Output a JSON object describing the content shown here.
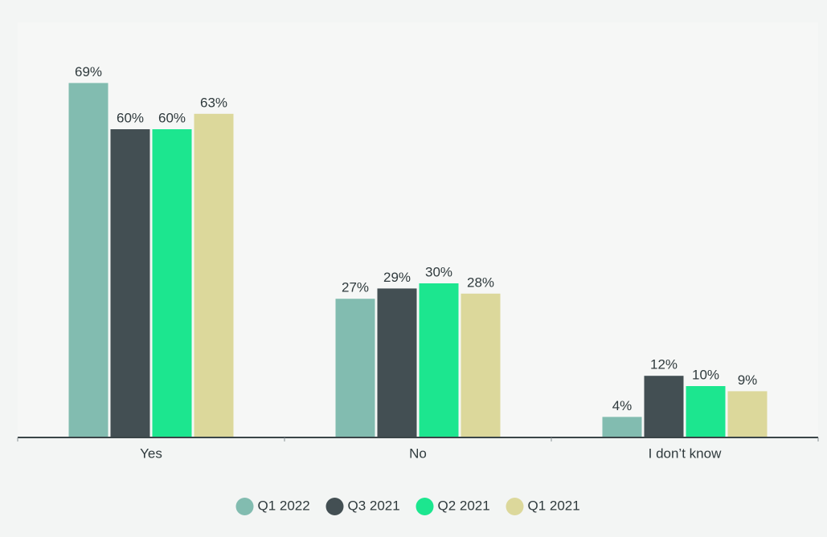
{
  "chart_data": {
    "type": "bar",
    "categories": [
      "Yes",
      "No",
      "I don’t know"
    ],
    "series": [
      {
        "name": "Q1 2022",
        "color": "#82bcb0",
        "values": [
          69,
          27,
          4
        ],
        "value_labels": [
          "69%",
          "27%",
          "4%"
        ]
      },
      {
        "name": "Q3 2021",
        "color": "#434f53",
        "values": [
          60,
          29,
          12
        ],
        "value_labels": [
          "60%",
          "29%",
          "12%"
        ]
      },
      {
        "name": "Q2 2021",
        "color": "#1ce68f",
        "values": [
          60,
          30,
          10
        ],
        "value_labels": [
          "60%",
          "30%",
          "10%"
        ]
      },
      {
        "name": "Q1 2021",
        "color": "#dcd89b",
        "values": [
          63,
          28,
          9
        ],
        "value_labels": [
          "63%",
          "28%",
          "9%"
        ]
      }
    ],
    "ylim": [
      0,
      80
    ],
    "legend": "bottom"
  }
}
